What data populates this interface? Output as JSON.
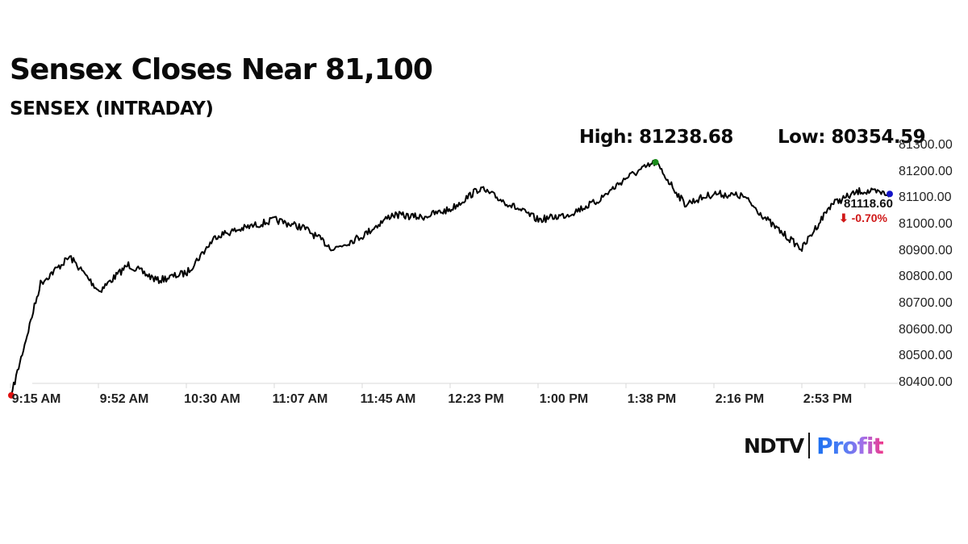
{
  "header": {
    "title": "Sensex Closes Near 81,100",
    "subtitle": "SENSEX (INTRADAY)",
    "high_label": "High: 81238.68",
    "low_label": "Low: 80354.59"
  },
  "annotations": {
    "close_value": "81118.60",
    "close_change": "⬇ -0.70%",
    "high_marker_color": "#1a8a1a",
    "open_marker_color": "#e01010",
    "close_marker_color": "#1414c8",
    "change_color": "#d01818"
  },
  "axes": {
    "y_ticks": [
      "81300.00",
      "81200.00",
      "81100.00",
      "81000.00",
      "80900.00",
      "80800.00",
      "80700.00",
      "80600.00",
      "80500.00",
      "80400.00"
    ],
    "x_ticks": [
      "9:15 AM",
      "9:52 AM",
      "10:30 AM",
      "11:07 AM",
      "11:45 AM",
      "12:23 PM",
      "1:00 PM",
      "1:38 PM",
      "2:16 PM",
      "2:53 PM"
    ]
  },
  "branding": {
    "ndtv": "NDTV",
    "profit": "Profit"
  },
  "chart_data": {
    "type": "line",
    "title": "Sensex Closes Near 81,100",
    "subtitle": "SENSEX (INTRADAY)",
    "xlabel": "",
    "ylabel": "",
    "ylim": [
      80400,
      81300
    ],
    "grid": false,
    "legend": "none",
    "x": [
      "9:15 AM",
      "9:20 AM",
      "9:30 AM",
      "9:40 AM",
      "9:52 AM",
      "10:05 AM",
      "10:15 AM",
      "10:30 AM",
      "10:45 AM",
      "11:00 AM",
      "11:07 AM",
      "11:20 AM",
      "11:35 AM",
      "11:45 AM",
      "12:00 PM",
      "12:10 PM",
      "12:23 PM",
      "12:40 PM",
      "1:00 PM",
      "1:15 PM",
      "1:30 PM",
      "1:38 PM",
      "1:50 PM",
      "2:05 PM",
      "2:16 PM",
      "2:30 PM",
      "2:45 PM",
      "2:53 PM",
      "3:05 PM",
      "3:15 PM",
      "3:30 PM"
    ],
    "series": [
      {
        "name": "SENSEX",
        "values": [
          80354.59,
          80780,
          80880,
          80750,
          80850,
          80790,
          80820,
          80960,
          80990,
          81020,
          80990,
          80910,
          80960,
          81040,
          81030,
          81060,
          81140,
          81080,
          81020,
          81040,
          81090,
          81180,
          81238.68,
          81080,
          81120,
          81110,
          81000,
          80910,
          81080,
          81130,
          81118.6
        ]
      }
    ],
    "annotations": {
      "high": 81238.68,
      "low": 80354.59,
      "close": 81118.6,
      "change_pct": -0.7
    }
  }
}
